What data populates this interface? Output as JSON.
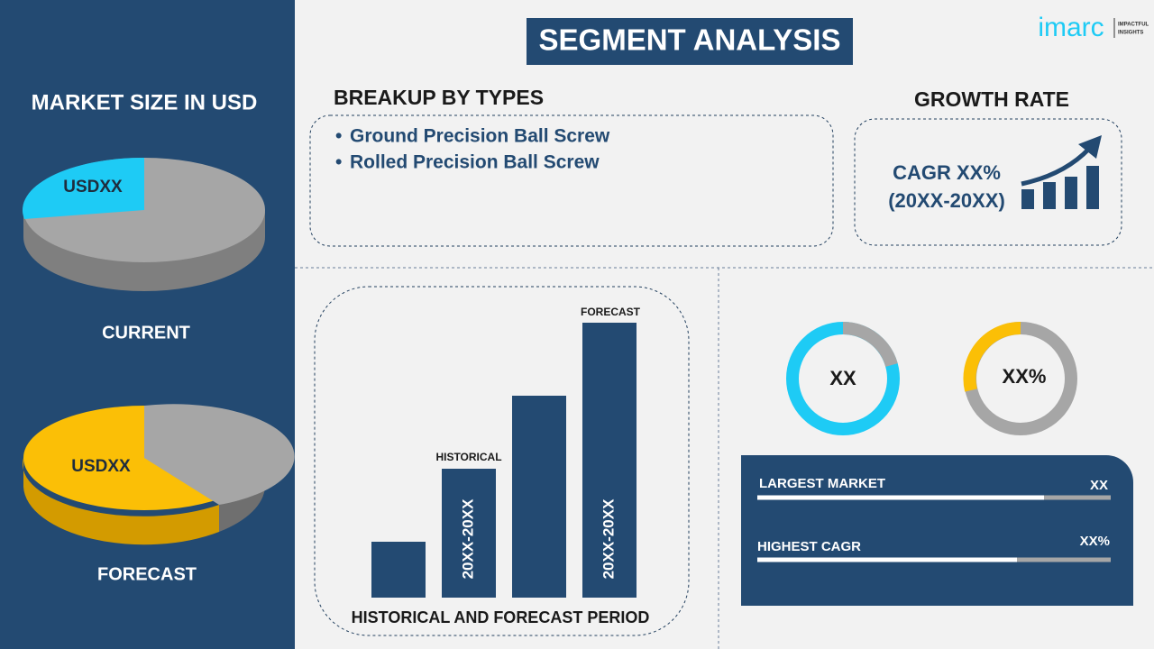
{
  "left": {
    "title": "MARKET SIZE IN USD",
    "current_value": "USDXX",
    "current_label": "CURRENT",
    "forecast_value": "USDXX",
    "forecast_label": "FORECAST"
  },
  "header": {
    "title": "SEGMENT ANALYSIS",
    "logo": "imarc",
    "logo_tag_1": "IMPACTFUL",
    "logo_tag_2": "INSIGHTS"
  },
  "breakup": {
    "title": "BREAKUP BY TYPES",
    "items": [
      "Ground Precision Ball Screw",
      "Rolled Precision Ball Screw"
    ]
  },
  "growth": {
    "title": "GROWTH RATE",
    "line_1": "CAGR XX%",
    "line_2": "(20XX-20XX)"
  },
  "period": {
    "historical": "HISTORICAL",
    "forecast": "FORECAST",
    "historical_range": "20XX-20XX",
    "forecast_range": "20XX-20XX",
    "caption": "HISTORICAL AND FORECAST PERIOD"
  },
  "donuts": [
    "XX",
    "XX%"
  ],
  "summary": {
    "rows": [
      [
        "LARGEST MARKET",
        "XX"
      ],
      [
        "HIGHEST CAGR",
        "XX%"
      ]
    ]
  }
}
